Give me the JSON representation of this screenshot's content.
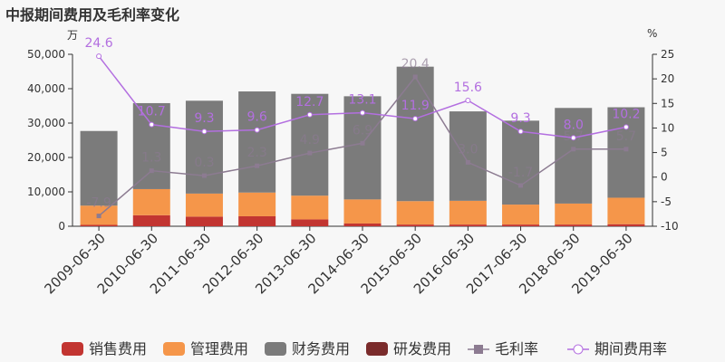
{
  "title": "中报期间费用及毛利率变化",
  "left_unit": "万",
  "right_unit": "%",
  "chart_data": {
    "type": "bar",
    "categories": [
      "2009-06-30",
      "2010-06-30",
      "2011-06-30",
      "2012-06-30",
      "2013-06-30",
      "2014-06-30",
      "2015-06-30",
      "2016-06-30",
      "2017-06-30",
      "2018-06-30",
      "2019-06-30"
    ],
    "stacked": true,
    "bar_series": [
      {
        "name": "销售费用",
        "color": "#c23531",
        "values": [
          400,
          3200,
          2800,
          2900,
          2000,
          800,
          500,
          500,
          500,
          500,
          600
        ]
      },
      {
        "name": "管理费用",
        "color": "#f5964a",
        "values": [
          5600,
          7600,
          6700,
          6900,
          6900,
          7000,
          6800,
          6900,
          5800,
          6100,
          7700
        ]
      },
      {
        "name": "财务费用",
        "color": "#7b7b7b",
        "values": [
          21700,
          25000,
          27000,
          29400,
          29600,
          30000,
          39100,
          26000,
          24400,
          27800,
          26300
        ]
      },
      {
        "name": "研发费用",
        "color": "#7a2b2b",
        "values": [
          0,
          0,
          0,
          0,
          0,
          0,
          0,
          0,
          0,
          0,
          0
        ]
      }
    ],
    "line_series": [
      {
        "name": "毛利率",
        "color": "#8c7b91",
        "values": [
          -7.9,
          1.3,
          0.3,
          2.3,
          4.9,
          6.9,
          20.4,
          3.0,
          -1.7,
          5.7,
          5.7
        ],
        "labels": [
          "-7.9",
          "1.3",
          "0.3",
          "2.3",
          "4.9",
          "6.9",
          "20.4",
          "3.0",
          "-1.7",
          "5.7",
          "5.7"
        ]
      },
      {
        "name": "期间费用率",
        "color": "#b36fe0",
        "values": [
          24.6,
          10.7,
          9.3,
          9.6,
          12.7,
          13.1,
          11.9,
          15.6,
          9.3,
          8.0,
          10.2
        ],
        "labels": [
          "24.6",
          "10.7",
          "9.3",
          "9.6",
          "12.7",
          "13.1",
          "11.9",
          "15.6",
          "9.3",
          "8.0",
          "10.2"
        ]
      }
    ],
    "y_left": {
      "min": 0,
      "max": 50000,
      "ticks": [
        "0",
        "10,000",
        "20,000",
        "30,000",
        "40,000",
        "50,000"
      ],
      "tick_values": [
        0,
        10000,
        20000,
        30000,
        40000,
        50000
      ]
    },
    "y_right": {
      "min": -10,
      "max": 25,
      "ticks": [
        "-10",
        "-5",
        "0",
        "5",
        "10",
        "15",
        "20",
        "25"
      ],
      "tick_values": [
        -10,
        -5,
        0,
        5,
        10,
        15,
        20,
        25
      ]
    },
    "legend_position": "bottom",
    "grid": false
  }
}
